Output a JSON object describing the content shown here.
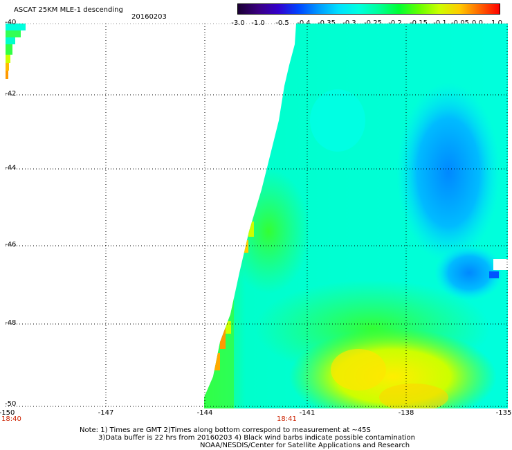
{
  "header": {
    "title": "ASCAT 25KM MLE-1 descending",
    "date": "20160203"
  },
  "colorbar": {
    "labels": [
      "-3.0",
      "-1.0",
      "-0.5",
      "-0.4",
      "-0.35",
      "-0.3",
      "-0.25",
      "-0.2",
      "-0.15",
      "-0.1",
      "-0.05",
      "0.0",
      "1.0"
    ],
    "colors": [
      "#1a0033",
      "#3a0080",
      "#3300cc",
      "#0044ff",
      "#0099ff",
      "#00e0ff",
      "#00ffe0",
      "#00ff99",
      "#00ff33",
      "#66ff00",
      "#ccff00",
      "#ffcc00",
      "#ff6600",
      "#ff0000"
    ]
  },
  "axes": {
    "x_ticks": [
      "-150",
      "-147",
      "-144",
      "-141",
      "-138",
      "-135"
    ],
    "y_ticks": [
      "-40",
      "-42",
      "-44",
      "-46",
      "-48",
      "-50"
    ],
    "time_labels": [
      "18:40",
      "18:41"
    ]
  },
  "notes": {
    "line1": "Note: 1) Times are GMT 2)Times along bottom correspond to measurement at ~45S",
    "line2": "3)Data buffer is 22 hrs from 20160203 4) Black wind barbs indicate possible contamination",
    "line3": "NOAA/NESDIS/Center for Satellite Applications and Research"
  }
}
